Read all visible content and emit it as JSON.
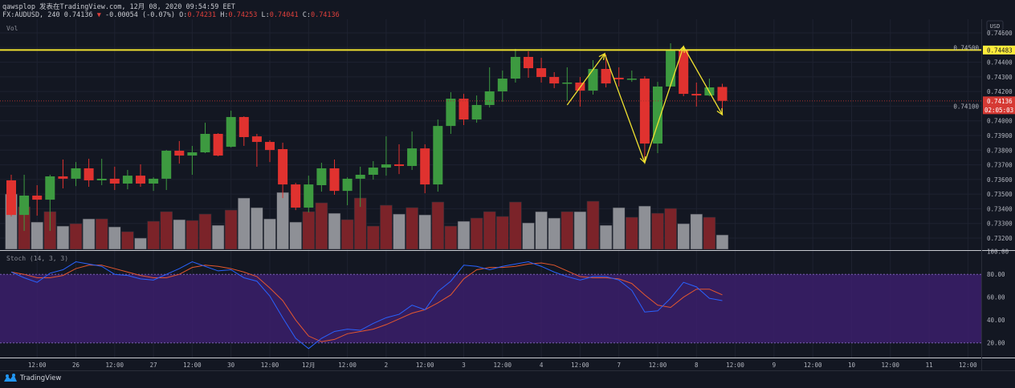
{
  "header": {
    "line1": "qawsplop 发表在TradingView.com, 12月 08, 2020 09:54:59 EET",
    "symbol": "FX:AUDUSD, 240 0.74136",
    "change_arrow": "▼",
    "change": "-0.00054 (-0.07%)",
    "o_label": "O:",
    "o_value": "0.74231",
    "h_label": "H:",
    "h_value": "0.74253",
    "l_label": "L:",
    "l_value": "0.74041",
    "c_label": "C:",
    "c_value": "0.74136"
  },
  "volume_label": "Vol",
  "stoch_label": "Stoch (14, 3, 3)",
  "footer": {
    "brand": "TradingView",
    "logo_icon": "tradingview-logo-icon"
  },
  "colors": {
    "up": "#3d9a40",
    "down": "#e0322f",
    "vol_up": "#8e9096",
    "vol_down": "#7b2329",
    "stoch_k": "#2962ff",
    "stoch_d": "#e4572e",
    "band": "#3b1e6b",
    "drawing": "#f0e130",
    "background": "#131722"
  },
  "chart_data": {
    "type": "candlestick",
    "symbol": "FX:AUDUSD",
    "interval": "240",
    "currency": "USD",
    "ylim": [
      0.7315,
      0.7465
    ],
    "price_ticks": [
      "0.74600",
      "0.74500",
      "0.74400",
      "0.74300",
      "0.74200",
      "0.74100",
      "0.74000",
      "0.73900",
      "0.73800",
      "0.73700",
      "0.73600",
      "0.73500",
      "0.73400",
      "0.73300",
      "0.73200"
    ],
    "price_tick_values": [
      0.746,
      0.745,
      0.744,
      0.743,
      0.742,
      0.741,
      0.74,
      0.739,
      0.738,
      0.737,
      0.736,
      0.735,
      0.734,
      0.733,
      0.732
    ],
    "x_labels": [
      "12:00",
      "26",
      "12:00",
      "27",
      "12:00",
      "30",
      "12:00",
      "12月",
      "12:00",
      "2",
      "12:00",
      "3",
      "12:00",
      "4",
      "12:00",
      "7",
      "12:00",
      "8",
      "12:00",
      "9",
      "12:00",
      "10",
      "12:00",
      "11",
      "12:00"
    ],
    "ohlc": [
      [
        0.73594,
        0.73632,
        0.73347,
        0.73358
      ],
      [
        0.73358,
        0.73632,
        0.73249,
        0.7349
      ],
      [
        0.7349,
        0.73561,
        0.73353,
        0.73462
      ],
      [
        0.73462,
        0.73632,
        0.73249,
        0.73621
      ],
      [
        0.73621,
        0.73736,
        0.73539,
        0.73605
      ],
      [
        0.73605,
        0.73719,
        0.73555,
        0.73676
      ],
      [
        0.73676,
        0.73741,
        0.7355,
        0.73594
      ],
      [
        0.73594,
        0.73741,
        0.73561,
        0.73605
      ],
      [
        0.73605,
        0.73687,
        0.73528,
        0.73572
      ],
      [
        0.73572,
        0.73665,
        0.73533,
        0.73626
      ],
      [
        0.73626,
        0.73703,
        0.7355,
        0.73572
      ],
      [
        0.73572,
        0.73615,
        0.73522,
        0.73605
      ],
      [
        0.73605,
        0.73801,
        0.73528,
        0.73796
      ],
      [
        0.73796,
        0.73862,
        0.73708,
        0.73763
      ],
      [
        0.73763,
        0.73829,
        0.73632,
        0.73785
      ],
      [
        0.73785,
        0.73987,
        0.7378,
        0.73911
      ],
      [
        0.73911,
        0.73916,
        0.73758,
        0.73763
      ],
      [
        0.73823,
        0.74069,
        0.73818,
        0.74026
      ],
      [
        0.74026,
        0.74031,
        0.73829,
        0.73889
      ],
      [
        0.73894,
        0.73911,
        0.73687,
        0.73856
      ],
      [
        0.73856,
        0.73867,
        0.73719,
        0.73801
      ],
      [
        0.73807,
        0.73851,
        0.73473,
        0.73566
      ],
      [
        0.73566,
        0.73577,
        0.73391,
        0.73408
      ],
      [
        0.73408,
        0.73626,
        0.73375,
        0.73566
      ],
      [
        0.73561,
        0.73714,
        0.73517,
        0.73676
      ],
      [
        0.73676,
        0.73736,
        0.73495,
        0.73522
      ],
      [
        0.73522,
        0.73615,
        0.73424,
        0.73605
      ],
      [
        0.73605,
        0.73687,
        0.73413,
        0.73632
      ],
      [
        0.73632,
        0.73725,
        0.73599,
        0.73681
      ],
      [
        0.73681,
        0.73894,
        0.73626,
        0.73703
      ],
      [
        0.73703,
        0.7384,
        0.73637,
        0.73692
      ],
      [
        0.73692,
        0.73927,
        0.73665,
        0.73812
      ],
      [
        0.73812,
        0.7384,
        0.73506,
        0.73566
      ],
      [
        0.73566,
        0.74009,
        0.73517,
        0.73965
      ],
      [
        0.73965,
        0.74195,
        0.73911,
        0.74151
      ],
      [
        0.74151,
        0.74184,
        0.73971,
        0.74009
      ],
      [
        0.74009,
        0.74173,
        0.73987,
        0.74108
      ],
      [
        0.74108,
        0.74365,
        0.74091,
        0.74201
      ],
      [
        0.74201,
        0.74343,
        0.7413,
        0.74288
      ],
      [
        0.74288,
        0.74491,
        0.74261,
        0.74436
      ],
      [
        0.74436,
        0.74474,
        0.74294,
        0.74359
      ],
      [
        0.74359,
        0.7443,
        0.74261,
        0.74299
      ],
      [
        0.74299,
        0.74332,
        0.74223,
        0.74255
      ],
      [
        0.74255,
        0.74365,
        0.74135,
        0.74261
      ],
      [
        0.74261,
        0.74299,
        0.74097,
        0.74206
      ],
      [
        0.74206,
        0.74414,
        0.74179,
        0.74354
      ],
      [
        0.74354,
        0.74452,
        0.74228,
        0.74255
      ],
      [
        0.74294,
        0.74365,
        0.74234,
        0.74283
      ],
      [
        0.74283,
        0.74343,
        0.74266,
        0.74288
      ],
      [
        0.74288,
        0.74305,
        0.73719,
        0.73845
      ],
      [
        0.73845,
        0.74266,
        0.7378,
        0.74234
      ],
      [
        0.74234,
        0.74529,
        0.74234,
        0.7448
      ],
      [
        0.7448,
        0.74496,
        0.74168,
        0.74184
      ],
      [
        0.74184,
        0.74261,
        0.74097,
        0.74173
      ],
      [
        0.74173,
        0.74288,
        0.74168,
        0.74228
      ],
      [
        0.74231,
        0.74253,
        0.74041,
        0.74136
      ]
    ],
    "volume_relative": [
      69,
      53,
      34,
      47,
      29,
      32,
      38,
      38,
      28,
      22,
      14,
      35,
      47,
      37,
      36,
      44,
      30,
      49,
      64,
      52,
      38,
      71,
      34,
      47,
      58,
      45,
      37,
      64,
      29,
      55,
      44,
      52,
      43,
      59,
      29,
      35,
      39,
      47,
      41,
      59,
      33,
      47,
      39,
      47,
      47,
      60,
      30,
      52,
      40,
      54,
      45,
      51,
      32,
      44,
      40,
      18
    ],
    "volume_up": [
      1,
      0,
      1,
      0,
      1,
      0,
      1,
      0,
      1,
      0,
      1,
      0,
      0,
      1,
      0,
      0,
      1,
      0,
      1,
      1,
      1,
      1,
      1,
      0,
      0,
      1,
      0,
      0,
      0,
      0,
      1,
      0,
      1,
      0,
      0,
      1,
      0,
      0,
      0,
      0,
      1,
      1,
      1,
      0,
      1,
      0,
      1,
      1,
      0,
      1,
      0,
      0,
      1,
      1,
      0,
      1
    ],
    "stoch": {
      "params": "14, 3, 3",
      "ylim": [
        0,
        100
      ],
      "levels": [
        80,
        20
      ],
      "axis_ticks": [
        "100.00",
        "80.00",
        "60.00",
        "40.00",
        "20.00"
      ],
      "axis_tick_values": [
        100,
        80,
        60,
        40,
        20
      ],
      "k": [
        82,
        77,
        73,
        81,
        84,
        91,
        89,
        87,
        80,
        79,
        76,
        75,
        80,
        85,
        91,
        87,
        83,
        84,
        77,
        74,
        61,
        42,
        24,
        15,
        24,
        30,
        32,
        31,
        37,
        42,
        45,
        53,
        49,
        65,
        74,
        88,
        87,
        84,
        87,
        89,
        91,
        87,
        82,
        78,
        75,
        78,
        78,
        75,
        66,
        47,
        48,
        59,
        73,
        69,
        59,
        57
      ],
      "d": [
        82,
        80,
        77,
        77,
        79,
        85,
        88,
        88,
        85,
        82,
        79,
        77,
        77,
        80,
        86,
        88,
        87,
        85,
        82,
        78,
        68,
        57,
        40,
        26,
        21,
        23,
        28,
        30,
        32,
        36,
        41,
        46,
        49,
        55,
        62,
        76,
        84,
        86,
        86,
        87,
        89,
        90,
        88,
        83,
        78,
        77,
        77,
        76,
        72,
        62,
        53,
        51,
        60,
        67,
        67,
        62
      ]
    },
    "drawings": {
      "horizontal_line": {
        "price": 0.74483,
        "label": "0.74483"
      },
      "zigzag": [
        [
          43,
          0.74108
        ],
        [
          45.9,
          0.74458
        ],
        [
          49,
          0.73714
        ],
        [
          52,
          0.74507
        ],
        [
          55,
          0.74042
        ]
      ]
    },
    "last_price": {
      "value": 0.74136,
      "label": "0.74136",
      "countdown": "02:05:03"
    }
  }
}
